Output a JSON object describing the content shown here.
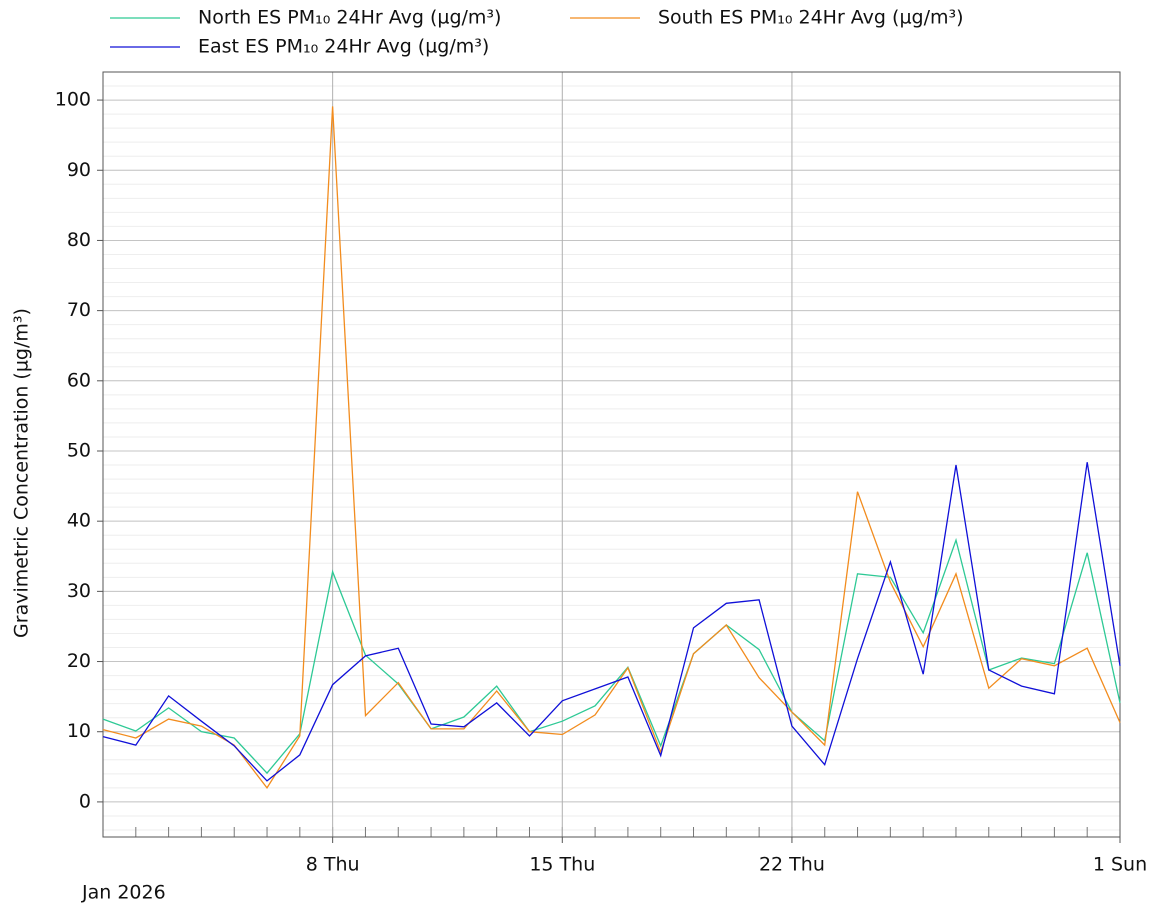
{
  "chart_data": {
    "type": "line",
    "y_label": "Gravimetric Concentration (µg/m³)",
    "x_period_label": "Jan 2026",
    "x": [
      "2026-01-01",
      "2026-01-02",
      "2026-01-03",
      "2026-01-04",
      "2026-01-05",
      "2026-01-06",
      "2026-01-07",
      "2026-01-08",
      "2026-01-09",
      "2026-01-10",
      "2026-01-11",
      "2026-01-12",
      "2026-01-13",
      "2026-01-14",
      "2026-01-15",
      "2026-01-16",
      "2026-01-17",
      "2026-01-18",
      "2026-01-19",
      "2026-01-20",
      "2026-01-21",
      "2026-01-22",
      "2026-01-23",
      "2026-01-24",
      "2026-01-25",
      "2026-01-26",
      "2026-01-27",
      "2026-01-28",
      "2026-01-29",
      "2026-01-30",
      "2026-01-31",
      "2026-02-01"
    ],
    "series": [
      {
        "name": "North ES PM₁₀ 24Hr Avg (µg/m³)",
        "color": "#2ec995",
        "values": [
          11.8,
          10.1,
          13.4,
          10.0,
          9.1,
          4.1,
          9.7,
          32.8,
          20.9,
          16.8,
          10.4,
          12.1,
          16.5,
          10.0,
          11.5,
          13.7,
          19.2,
          8.0,
          21.1,
          25.2,
          21.7,
          12.8,
          8.7,
          32.5,
          32.0,
          24.1,
          37.3,
          18.8,
          20.5,
          19.7,
          35.5,
          14.1
        ]
      },
      {
        "name": "South ES PM₁₀ 24Hr Avg (µg/m³)",
        "color": "#f28c1e",
        "values": [
          10.3,
          9.1,
          11.8,
          10.8,
          8.1,
          2.0,
          9.4,
          99.1,
          12.3,
          17.0,
          10.4,
          10.4,
          15.8,
          10.0,
          9.6,
          12.4,
          19.1,
          7.1,
          21.1,
          25.2,
          17.7,
          12.8,
          8.1,
          44.2,
          31.3,
          22.1,
          32.5,
          16.2,
          20.4,
          19.4,
          21.9,
          11.3
        ]
      },
      {
        "name": "East ES PM₁₀ 24Hr Avg (µg/m³)",
        "color": "#1010d8",
        "values": [
          9.3,
          8.1,
          15.1,
          11.5,
          8.0,
          3.0,
          6.7,
          16.7,
          20.8,
          21.9,
          11.1,
          10.7,
          14.1,
          9.4,
          14.4,
          16.1,
          17.8,
          6.6,
          24.8,
          28.3,
          28.8,
          10.8,
          5.3,
          20.4,
          34.2,
          18.2,
          48.0,
          18.8,
          16.5,
          15.4,
          48.4,
          19.4
        ]
      }
    ],
    "xlim": [
      "2026-01-01",
      "2026-02-01"
    ],
    "xticks": [
      {
        "value": "2026-01-08",
        "label": "8 Thu"
      },
      {
        "value": "2026-01-15",
        "label": "15 Thu"
      },
      {
        "value": "2026-01-22",
        "label": "22 Thu"
      },
      {
        "value": "2026-02-01",
        "label": "1 Sun"
      }
    ],
    "ylim": [
      -5,
      104
    ],
    "yticks": [
      0,
      10,
      20,
      30,
      40,
      50,
      60,
      70,
      80,
      90,
      100
    ],
    "y_minor_step": 2,
    "grid": true,
    "legend": "top"
  }
}
